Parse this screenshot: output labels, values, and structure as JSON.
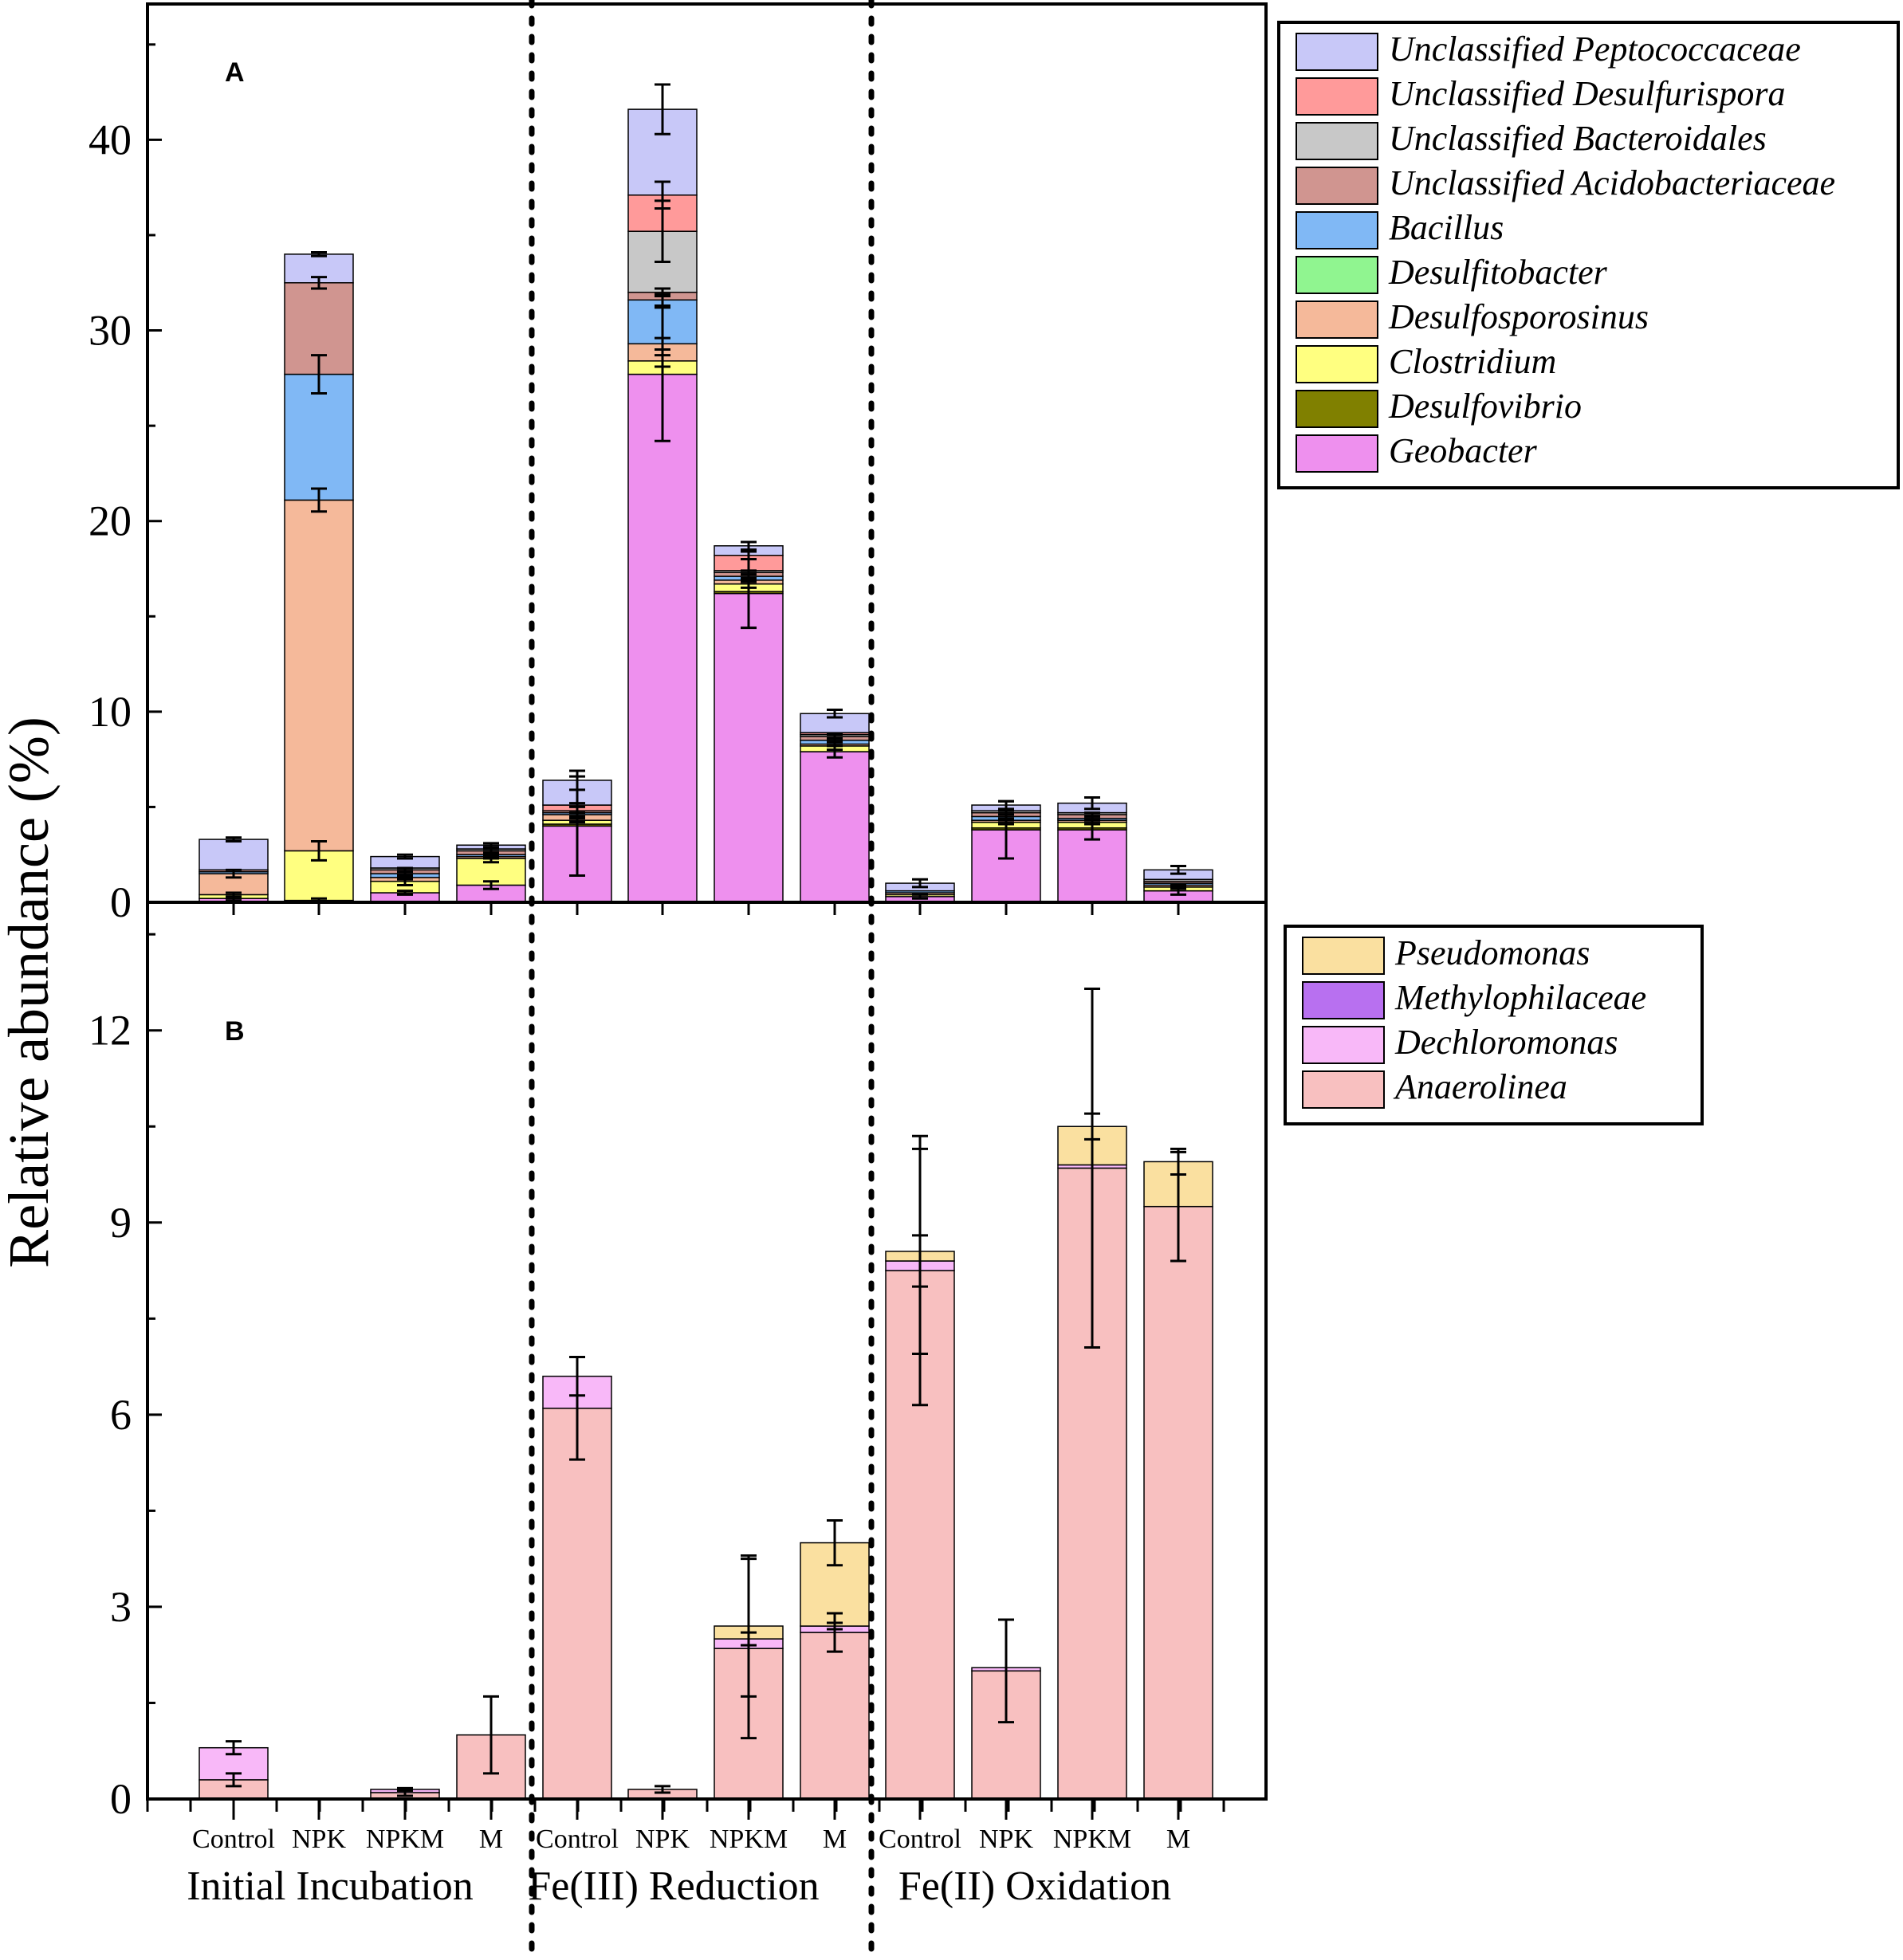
{
  "chart_data": [
    {
      "panel": "A",
      "type": "stacked-bar",
      "ylabel": "Relative abundance (%)",
      "ylim": [
        0,
        47
      ],
      "yticks": [
        0,
        10,
        20,
        30,
        40
      ],
      "groups": [
        "Initial Incubation",
        "Fe(III) Reduction",
        "Fe(II) Oxidation"
      ],
      "categories": [
        "Control",
        "NPK",
        "NPKM",
        "M",
        "Control",
        "NPK",
        "NPKM",
        "M",
        "Control",
        "NPK",
        "NPKM",
        "M"
      ],
      "series": [
        {
          "name": "Geobacter",
          "color": "#EE90EE",
          "values": [
            0.2,
            0.1,
            0.5,
            0.9,
            4.0,
            27.7,
            16.2,
            7.9,
            0.3,
            3.8,
            3.8,
            0.6
          ],
          "errors": [
            0.1,
            0.1,
            0.1,
            0.2,
            2.6,
            3.5,
            1.8,
            0.3,
            0.1,
            1.5,
            0.5,
            0.2
          ]
        },
        {
          "name": "Desulfovibrio",
          "color": "#808000",
          "values": [
            0,
            0,
            0,
            0,
            0.1,
            0,
            0.1,
            0,
            0,
            0.1,
            0.1,
            0
          ],
          "errors": [
            0,
            0,
            0,
            0,
            0,
            0,
            0,
            0,
            0,
            0,
            0,
            0
          ]
        },
        {
          "name": "Clostridium",
          "color": "#FFFF80",
          "values": [
            0.2,
            2.6,
            0.6,
            1.4,
            0.2,
            0.7,
            0.4,
            0.3,
            0.1,
            0.3,
            0.3,
            0.2
          ],
          "errors": [
            0.1,
            0.5,
            0.2,
            0.2,
            0.1,
            0.3,
            0.2,
            0.2,
            0,
            0.1,
            0.1,
            0.1
          ]
        },
        {
          "name": "Desulfosporosinus",
          "color": "#F5B99A",
          "values": [
            1.1,
            18.4,
            0.2,
            0.1,
            0.3,
            0.9,
            0.2,
            0.1,
            0.1,
            0.1,
            0.1,
            0.1
          ],
          "errors": [
            0.2,
            0.6,
            0.1,
            0.1,
            0.1,
            0.3,
            0.1,
            0,
            0,
            0,
            0,
            0
          ]
        },
        {
          "name": "Desulfitobacter",
          "color": "#90F590",
          "values": [
            0,
            0,
            0,
            0,
            0,
            0,
            0,
            0,
            0,
            0,
            0,
            0
          ],
          "errors": [
            0,
            0,
            0,
            0,
            0,
            0,
            0,
            0,
            0,
            0,
            0,
            0
          ]
        },
        {
          "name": "Bacillus",
          "color": "#80B8F5",
          "values": [
            0.1,
            6.6,
            0.2,
            0.1,
            0.1,
            2.3,
            0.2,
            0.2,
            0.1,
            0.2,
            0.1,
            0.1
          ],
          "errors": [
            0,
            1.0,
            0.1,
            0.1,
            0,
            0.3,
            0.1,
            0.1,
            0,
            0.1,
            0.1,
            0
          ]
        },
        {
          "name": "Unclassified Acidobacteriaceae",
          "color": "#D09590",
          "values": [
            0.1,
            4.8,
            0.2,
            0.2,
            0.1,
            0.4,
            0.2,
            0.2,
            0,
            0.2,
            0.2,
            0.1
          ],
          "errors": [
            0,
            0.3,
            0.1,
            0.1,
            0,
            0.2,
            0.1,
            0.1,
            0,
            0.1,
            0.1,
            0
          ]
        },
        {
          "name": "Unclassified Bacteroidales",
          "color": "#C8C8C8",
          "values": [
            0,
            0,
            0.1,
            0.1,
            0,
            3.2,
            0.1,
            0.1,
            0,
            0.1,
            0.1,
            0.1
          ],
          "errors": [
            0,
            0,
            0,
            0,
            0,
            1.6,
            0,
            0,
            0,
            0,
            0,
            0
          ]
        },
        {
          "name": "Unclassified Desulfurispora",
          "color": "#FF9A9A",
          "values": [
            0,
            0,
            0,
            0,
            0.3,
            1.9,
            0.8,
            0.1,
            0,
            0,
            0,
            0
          ],
          "errors": [
            0,
            0,
            0,
            0,
            0.1,
            0.7,
            0.2,
            0,
            0,
            0,
            0,
            0
          ]
        },
        {
          "name": "Unclassified Peptococcaceae",
          "color": "#C8C8F8",
          "values": [
            1.6,
            1.5,
            0.6,
            0.2,
            1.3,
            4.5,
            0.5,
            1.0,
            0.4,
            0.3,
            0.5,
            0.5
          ],
          "errors": [
            0.1,
            0.1,
            0.1,
            0.1,
            0.5,
            1.3,
            0.2,
            0.2,
            0.2,
            0.2,
            0.3,
            0.2
          ]
        }
      ]
    },
    {
      "panel": "B",
      "type": "stacked-bar",
      "ylabel": "Relative abundance (%)",
      "ylim": [
        0,
        14
      ],
      "yticks": [
        0,
        3,
        6,
        9,
        12
      ],
      "groups": [
        "Initial Incubation",
        "Fe(III) Reduction",
        "Fe(II) Oxidation"
      ],
      "categories": [
        "Control",
        "NPK",
        "NPKM",
        "M",
        "Control",
        "NPK",
        "NPKM",
        "M",
        "Control",
        "NPK",
        "NPKM",
        "M"
      ],
      "series": [
        {
          "name": "Anaerolinea",
          "color": "#F8C0C0",
          "values": [
            0.3,
            0,
            0.1,
            1.0,
            6.1,
            0.15,
            2.35,
            2.6,
            8.25,
            2.0,
            9.85,
            9.25
          ],
          "errors": [
            0.1,
            0,
            0.05,
            0.6,
            0.8,
            0.05,
            1.4,
            0.3,
            2.1,
            0.8,
            2.8,
            0.85
          ]
        },
        {
          "name": "Dechloromonas",
          "color": "#F8B8F8",
          "values": [
            0.5,
            0,
            0.05,
            0,
            0.5,
            0,
            0.15,
            0.1,
            0.15,
            0.05,
            0.05,
            0
          ],
          "errors": [
            0.1,
            0,
            0.02,
            0,
            0.3,
            0,
            0.1,
            0.05,
            0.4,
            0,
            0,
            0
          ]
        },
        {
          "name": "Methylophilaceae",
          "color": "#B870F0",
          "values": [
            0,
            0,
            0,
            0,
            0,
            0,
            0,
            0,
            0,
            0,
            0,
            0
          ],
          "errors": [
            0,
            0,
            0,
            0,
            0,
            0,
            0,
            0,
            0,
            0,
            0,
            0
          ]
        },
        {
          "name": "Pseudomonas",
          "color": "#FAE0A0",
          "values": [
            0,
            0,
            0,
            0,
            0,
            0,
            0.2,
            1.3,
            0.15,
            0,
            0.6,
            0.7
          ],
          "errors": [
            0,
            0,
            0,
            0,
            0,
            0,
            1.1,
            0.35,
            1.6,
            0,
            0.2,
            0.2
          ]
        }
      ]
    }
  ],
  "legend_order_a": [
    "Unclassified Peptococcaceae",
    "Unclassified Desulfurispora",
    "Unclassified Bacteroidales",
    "Unclassified Acidobacteriaceae",
    "Bacillus",
    "Desulfitobacter",
    "Desulfosporosinus",
    "Clostridium",
    "Desulfovibrio",
    "Geobacter"
  ],
  "legend_order_b": [
    "Pseudomonas",
    "Methylophilaceae",
    "Dechloromonas",
    "Anaerolinea"
  ]
}
